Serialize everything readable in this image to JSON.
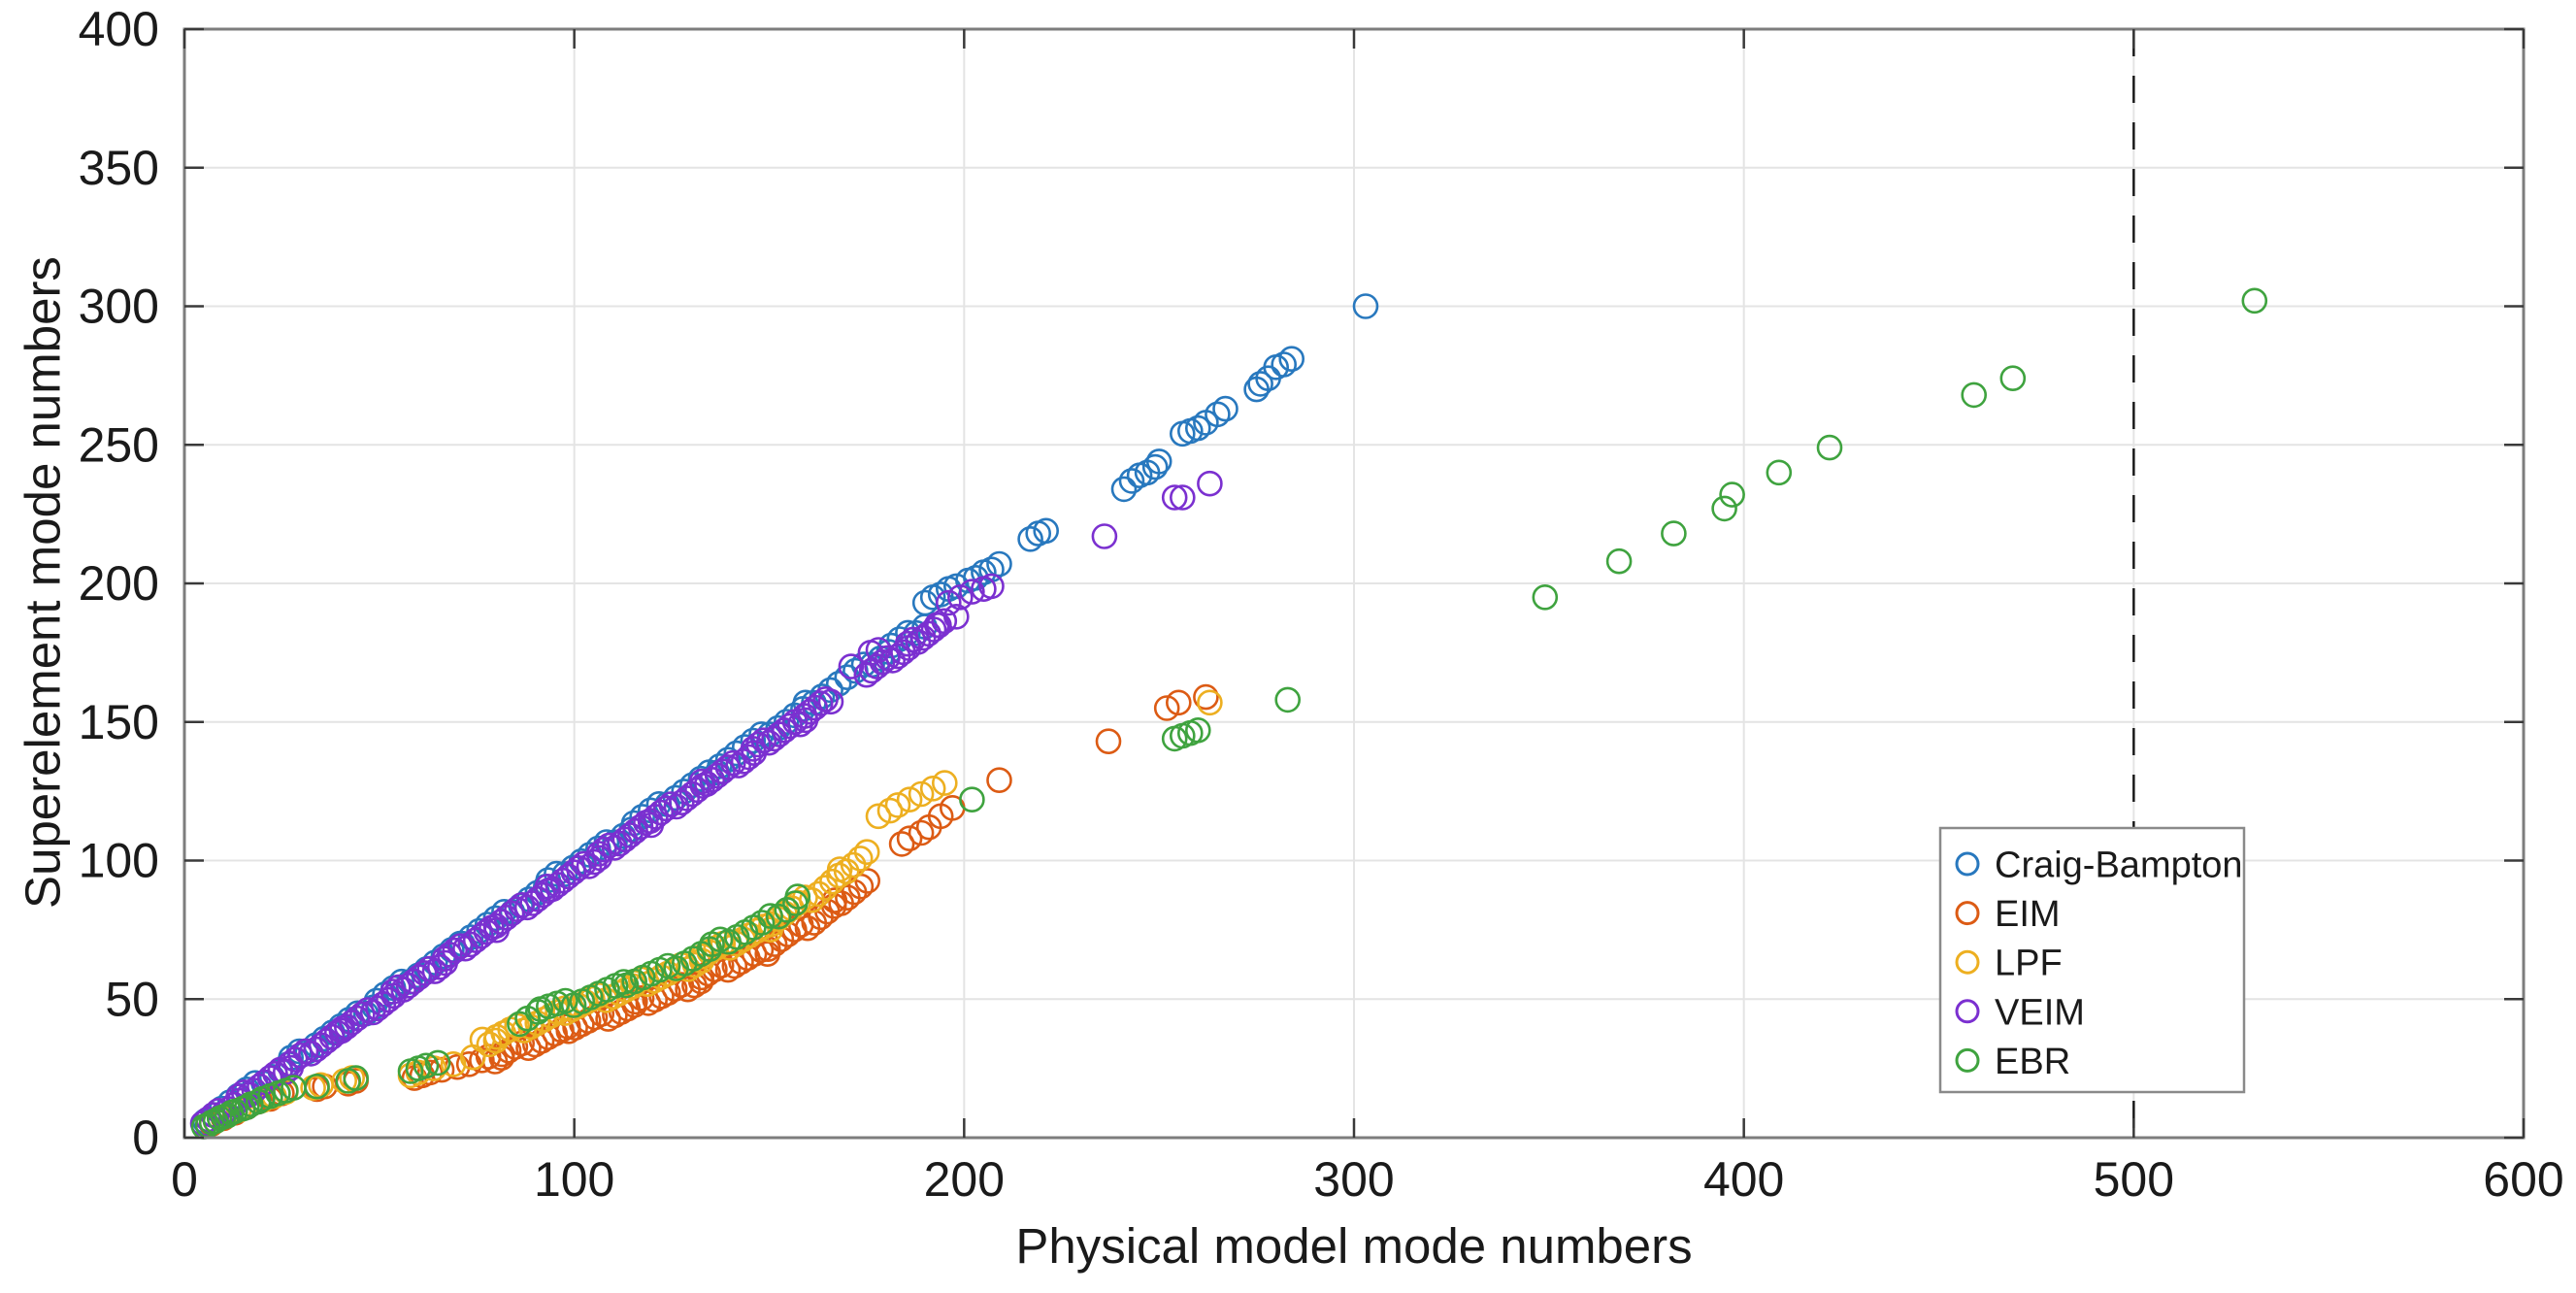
{
  "chart_data": {
    "type": "scatter",
    "title": "",
    "xlabel": "Physical model mode numbers",
    "ylabel": "Superelement mode numbers",
    "xlim": [
      0,
      600
    ],
    "ylim": [
      0,
      400
    ],
    "xticks": [
      0,
      100,
      200,
      300,
      400,
      500,
      600
    ],
    "yticks": [
      0,
      50,
      100,
      150,
      200,
      250,
      300,
      350,
      400
    ],
    "grid": true,
    "legend_position": "lower right",
    "marker": {
      "shape": "circle",
      "filled": false
    },
    "reference_line": {
      "axis": "x",
      "value": 500,
      "style": "dashed",
      "color": "#1a1a1a"
    },
    "colors": {
      "grid": "#e4e4e4",
      "axis_box": "#7d7d7d",
      "tick": "#3a3a3a",
      "text": "#1a1a1a",
      "background": "#ffffff"
    },
    "series": [
      {
        "name": "Craig-Bampton",
        "color": "#2878BE",
        "band": {
          "x0": 6,
          "x1": 190,
          "step": 2.0,
          "slope": 0.968,
          "intercept": 1.2,
          "jitter": 1.1
        },
        "points": [
          [
            190,
            193
          ],
          [
            192,
            195
          ],
          [
            194,
            196
          ],
          [
            196,
            198
          ],
          [
            198,
            199
          ],
          [
            201,
            201
          ],
          [
            203,
            202
          ],
          [
            205,
            204
          ],
          [
            207,
            205
          ],
          [
            209,
            207
          ],
          [
            217,
            216
          ],
          [
            219,
            218
          ],
          [
            221,
            219
          ],
          [
            241,
            234
          ],
          [
            243,
            237
          ],
          [
            245,
            239
          ],
          [
            247,
            240
          ],
          [
            249,
            242
          ],
          [
            250,
            244
          ],
          [
            256,
            254
          ],
          [
            258,
            255
          ],
          [
            260,
            256
          ],
          [
            262,
            258
          ],
          [
            265,
            261
          ],
          [
            267,
            263
          ],
          [
            275,
            270
          ],
          [
            276,
            272
          ],
          [
            278,
            274
          ],
          [
            280,
            278
          ],
          [
            282,
            279
          ],
          [
            284,
            281
          ],
          [
            303,
            300
          ]
        ]
      },
      {
        "name": "EIM",
        "color": "#DC5B14",
        "curve": {
          "control_points": [
            [
              76,
              27
            ],
            [
              100,
              40
            ],
            [
              124,
              52
            ],
            [
              148,
              67
            ],
            [
              160,
              77
            ],
            [
              170,
              87
            ],
            [
              176,
              93
            ]
          ],
          "step": 1.55,
          "jitter": 1.4
        },
        "points": [
          [
            7,
            5
          ],
          [
            10,
            7
          ],
          [
            13,
            9
          ],
          [
            16,
            11
          ],
          [
            19,
            13
          ],
          [
            22,
            14
          ],
          [
            25,
            16
          ],
          [
            34,
            17.5
          ],
          [
            36,
            18.5
          ],
          [
            42,
            19.5
          ],
          [
            44,
            20.5
          ],
          [
            59,
            21.5
          ],
          [
            61,
            22.5
          ],
          [
            63,
            23.5
          ],
          [
            66,
            24.5
          ],
          [
            70,
            25.5
          ],
          [
            73,
            26.5
          ],
          [
            184,
            106
          ],
          [
            186,
            108
          ],
          [
            189,
            110
          ],
          [
            191,
            112
          ],
          [
            194,
            116
          ],
          [
            197,
            119
          ],
          [
            209,
            129
          ],
          [
            237,
            143
          ],
          [
            252,
            155
          ],
          [
            255,
            157
          ],
          [
            262,
            159
          ]
        ]
      },
      {
        "name": "LPF",
        "color": "#EDAF20",
        "curve": {
          "control_points": [
            [
              76,
              34
            ],
            [
              100,
              47
            ],
            [
              124,
              59
            ],
            [
              148,
              75
            ],
            [
              160,
              86
            ],
            [
              170,
              97
            ],
            [
              176,
              104
            ]
          ],
          "step": 1.6,
          "jitter": 1.4
        },
        "points": [
          [
            8,
            6
          ],
          [
            11,
            8
          ],
          [
            14,
            10
          ],
          [
            17,
            12
          ],
          [
            20,
            13.5
          ],
          [
            23,
            15
          ],
          [
            26,
            16.5
          ],
          [
            33,
            18
          ],
          [
            35,
            19
          ],
          [
            41,
            20.5
          ],
          [
            43,
            21.5
          ],
          [
            58,
            22.5
          ],
          [
            60,
            23.5
          ],
          [
            64,
            25
          ],
          [
            69,
            26.5
          ],
          [
            74,
            29
          ],
          [
            178,
            116
          ],
          [
            181,
            118
          ],
          [
            183,
            120
          ],
          [
            186,
            122
          ],
          [
            189,
            124
          ],
          [
            192,
            126
          ],
          [
            195,
            128
          ],
          [
            263,
            157
          ]
        ]
      },
      {
        "name": "VEIM",
        "color": "#7B30D0",
        "band": {
          "x0": 5,
          "x1": 195,
          "step": 1.2,
          "slope": 0.952,
          "intercept": 0.4,
          "jitter": 1.1,
          "gap": [
            166,
            175
          ]
        },
        "points": [
          [
            171,
            170
          ],
          [
            176,
            175
          ],
          [
            178,
            176
          ],
          [
            193,
            185
          ],
          [
            198,
            188
          ],
          [
            196,
            193
          ],
          [
            199,
            195
          ],
          [
            202,
            197
          ],
          [
            205,
            198
          ],
          [
            207,
            199
          ],
          [
            236,
            217
          ],
          [
            254,
            231
          ],
          [
            256,
            231
          ],
          [
            263,
            236
          ]
        ]
      },
      {
        "name": "EBR",
        "color": "#3FA33F",
        "curve": {
          "control_points": [
            [
              90,
              46
            ],
            [
              100,
              49
            ],
            [
              124,
              61
            ],
            [
              148,
              77
            ],
            [
              158,
              87
            ]
          ],
          "step": 2.0,
          "jitter": 1.2
        },
        "points": [
          [
            5,
            4
          ],
          [
            6,
            4.5
          ],
          [
            7,
            5.5
          ],
          [
            8,
            6
          ],
          [
            9,
            7
          ],
          [
            10,
            7.5
          ],
          [
            11,
            8
          ],
          [
            12,
            9
          ],
          [
            13,
            9.5
          ],
          [
            15,
            10.5
          ],
          [
            16,
            11
          ],
          [
            17,
            12
          ],
          [
            19,
            13
          ],
          [
            20,
            14
          ],
          [
            22,
            15
          ],
          [
            24,
            16
          ],
          [
            26,
            17
          ],
          [
            28,
            18
          ],
          [
            34,
            18.5
          ],
          [
            42,
            20.5
          ],
          [
            44,
            21.5
          ],
          [
            58,
            24
          ],
          [
            60,
            25
          ],
          [
            62,
            26
          ],
          [
            65,
            27
          ],
          [
            86,
            41
          ],
          [
            88,
            43
          ],
          [
            202,
            122
          ],
          [
            254,
            144
          ],
          [
            256,
            145
          ],
          [
            258,
            146
          ],
          [
            260,
            147
          ],
          [
            283,
            158
          ],
          [
            349,
            195
          ],
          [
            368,
            208
          ],
          [
            382,
            218
          ],
          [
            395,
            227
          ],
          [
            397,
            232
          ],
          [
            409,
            240
          ],
          [
            422,
            249
          ],
          [
            459,
            268
          ],
          [
            469,
            274
          ],
          [
            531,
            302
          ]
        ]
      }
    ]
  }
}
